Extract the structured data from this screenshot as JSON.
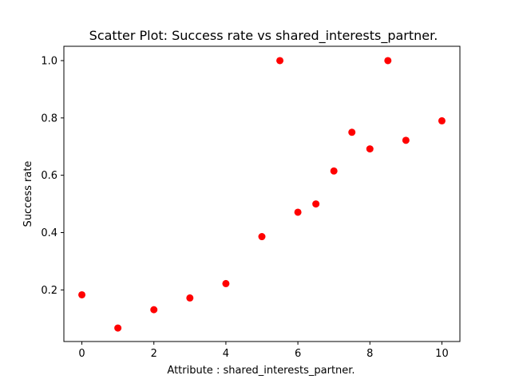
{
  "chart_data": {
    "type": "scatter",
    "title": "Scatter Plot: Success rate vs shared_interests_partner.",
    "xlabel": "Attribute : shared_interests_partner.",
    "ylabel": "Success rate",
    "xlim": [
      -0.5,
      10.5
    ],
    "ylim": [
      0.02,
      1.05
    ],
    "xticks": [
      0,
      2,
      4,
      6,
      8,
      10
    ],
    "yticks": [
      0.2,
      0.4,
      0.6,
      0.8,
      1.0
    ],
    "xtick_labels": [
      "0",
      "2",
      "4",
      "6",
      "8",
      "10"
    ],
    "ytick_labels": [
      "0.2",
      "0.4",
      "0.6",
      "0.8",
      "1.0"
    ],
    "grid": false,
    "marker_color": "#ff0000",
    "series": [
      {
        "x": [
          0,
          1,
          2,
          3,
          4,
          5,
          5.5,
          6,
          6.5,
          7,
          7.5,
          8,
          8.5,
          9,
          10
        ],
        "y": [
          0.183,
          0.067,
          0.131,
          0.172,
          0.222,
          0.386,
          1.0,
          0.471,
          0.5,
          0.615,
          0.75,
          0.692,
          1.0,
          0.722,
          0.79
        ]
      }
    ]
  }
}
